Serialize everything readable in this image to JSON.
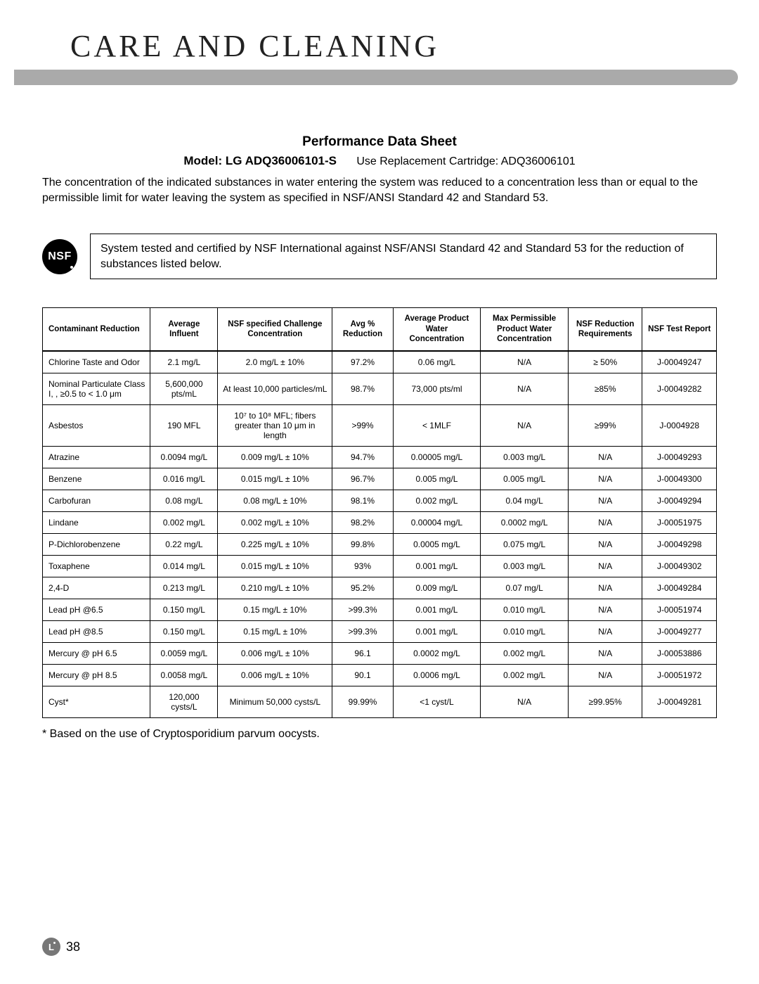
{
  "header": {
    "section_title": "CARE AND CLEANING",
    "bar_color": "#aaaaaa"
  },
  "sheet": {
    "title": "Performance Data Sheet",
    "model_label": "Model: LG ADQ36006101-S",
    "cartridge_text": "Use Replacement Cartridge: ADQ36006101",
    "intro": "The concentration of the indicated substances in water entering the system was reduced to a concentration less than or equal to the permissible limit for water leaving the system as specified in NSF/ANSI Standard 42 and Standard 53."
  },
  "nsf": {
    "badge_text": "NSF",
    "badge_bg": "#000000",
    "badge_fg": "#ffffff",
    "box_text": "System tested and certified by NSF International against NSF/ANSI Standard 42 and Standard 53 for the reduction of substances listed below."
  },
  "table": {
    "columns": [
      "Contaminant Reduction",
      "Average Influent",
      "NSF specified Challenge Concentration",
      "Avg % Reduction",
      "Average Product Water Concentration",
      "Max Permissible Product Water Concentration",
      "NSF Reduction Requirements",
      "NSF Test Report"
    ],
    "rows": [
      [
        "Chlorine Taste and Odor",
        "2.1 mg/L",
        "2.0 mg/L ± 10%",
        "97.2%",
        "0.06 mg/L",
        "N/A",
        "≥ 50%",
        "J-00049247"
      ],
      [
        "Nominal Particulate Class I, , ≥0.5 to < 1.0 μm",
        "5,600,000 pts/mL",
        "At least 10,000 particles/mL",
        "98.7%",
        "73,000 pts/ml",
        "N/A",
        "≥85%",
        "J-00049282"
      ],
      [
        "Asbestos",
        "190 MFL",
        "10⁷ to 10⁸ MFL; fibers greater than 10 μm in length",
        ">99%",
        "< 1MLF",
        "N/A",
        "≥99%",
        "J-0004928"
      ],
      [
        "Atrazine",
        "0.0094 mg/L",
        "0.009 mg/L ± 10%",
        "94.7%",
        "0.00005 mg/L",
        "0.003 mg/L",
        "N/A",
        "J-00049293"
      ],
      [
        "Benzene",
        "0.016 mg/L",
        "0.015 mg/L ± 10%",
        "96.7%",
        "0.005 mg/L",
        "0.005 mg/L",
        "N/A",
        "J-00049300"
      ],
      [
        "Carbofuran",
        "0.08 mg/L",
        "0.08 mg/L ± 10%",
        "98.1%",
        "0.002 mg/L",
        "0.04 mg/L",
        "N/A",
        "J-00049294"
      ],
      [
        "Lindane",
        "0.002 mg/L",
        "0.002 mg/L ± 10%",
        "98.2%",
        "0.00004 mg/L",
        "0.0002 mg/L",
        "N/A",
        "J-00051975"
      ],
      [
        "P-Dichlorobenzene",
        "0.22 mg/L",
        "0.225 mg/L ± 10%",
        "99.8%",
        "0.0005 mg/L",
        "0.075 mg/L",
        "N/A",
        "J-00049298"
      ],
      [
        "Toxaphene",
        "0.014 mg/L",
        "0.015 mg/L ± 10%",
        "93%",
        "0.001 mg/L",
        "0.003 mg/L",
        "N/A",
        "J-00049302"
      ],
      [
        "2,4-D",
        "0.213 mg/L",
        "0.210 mg/L ± 10%",
        "95.2%",
        "0.009 mg/L",
        "0.07 mg/L",
        "N/A",
        "J-00049284"
      ],
      [
        "Lead pH @6.5",
        "0.150 mg/L",
        "0.15 mg/L ± 10%",
        ">99.3%",
        "0.001 mg/L",
        "0.010 mg/L",
        "N/A",
        "J-00051974"
      ],
      [
        "Lead pH @8.5",
        "0.150 mg/L",
        "0.15 mg/L ± 10%",
        ">99.3%",
        "0.001 mg/L",
        "0.010 mg/L",
        "N/A",
        "J-00049277"
      ],
      [
        "Mercury @ pH 6.5",
        "0.0059 mg/L",
        "0.006 mg/L ± 10%",
        "96.1",
        "0.0002 mg/L",
        "0.002 mg/L",
        "N/A",
        "J-00053886"
      ],
      [
        "Mercury @ pH 8.5",
        "0.0058 mg/L",
        "0.006 mg/L ± 10%",
        "90.1",
        "0.0006 mg/L",
        "0.002 mg/L",
        "N/A",
        "J-00051972"
      ],
      [
        "Cyst*",
        "120,000 cysts/L",
        "Minimum 50,000 cysts/L",
        "99.99%",
        "<1 cyst/L",
        "N/A",
        "≥99.95%",
        "J-00049281"
      ]
    ],
    "cell_fontsize": 12,
    "header_fontsize": 11.5,
    "border_color": "#000000"
  },
  "footnote": "* Based on the use of Cryptosporidium parvum oocysts.",
  "footer": {
    "logo_text": "L",
    "page_number": "38"
  }
}
